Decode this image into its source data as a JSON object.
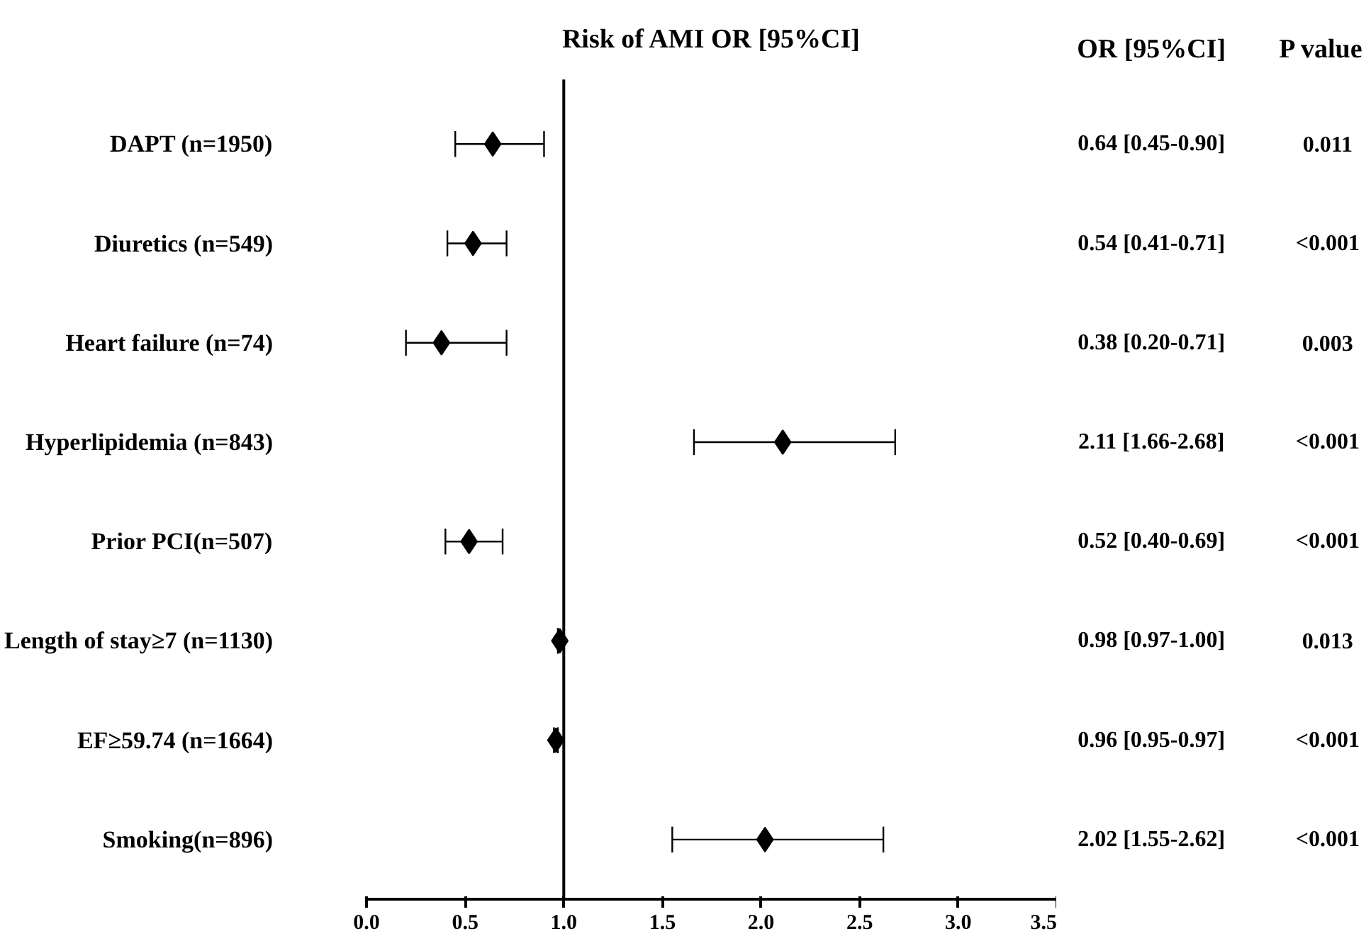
{
  "chart_data": {
    "type": "scatter",
    "orientation": "horizontal",
    "title": "Risk of AMI OR [95%CI]",
    "categories": [
      "DAPT (n=1950)",
      "Diuretics (n=549)",
      "Heart failure (n=74)",
      "Hyperlipidemia (n=843)",
      "Prior PCI(n=507)",
      "Length of stay≥7 (n=1130)",
      "EF≥59.74 (n=1664)",
      "Smoking(n=896)"
    ],
    "values": [
      0.64,
      0.54,
      0.38,
      2.11,
      0.52,
      0.98,
      0.96,
      2.02
    ],
    "errors": [
      [
        0.45,
        0.9
      ],
      [
        0.41,
        0.71
      ],
      [
        0.2,
        0.71
      ],
      [
        1.66,
        2.68
      ],
      [
        0.4,
        0.69
      ],
      [
        0.97,
        1.0
      ],
      [
        0.95,
        0.97
      ],
      [
        1.55,
        2.62
      ]
    ],
    "value_labels": [
      "0.64 [0.45-0.90]",
      "0.54 [0.41-0.71]",
      "0.38 [0.20-0.71]",
      "2.11 [1.66-2.68]",
      "0.52 [0.40-0.69]",
      "0.98 [0.97-1.00]",
      "0.96 [0.95-0.97]",
      "2.02 [1.55-2.62]"
    ],
    "color": "#000000",
    "marker": "diamond",
    "xlim": [
      0,
      3.5
    ],
    "xticks": [
      {
        "value": 0,
        "label": "0.0"
      },
      {
        "value": 0.5,
        "label": "0.5"
      },
      {
        "value": 1,
        "label": "1.0"
      },
      {
        "value": 1.5,
        "label": "1.5"
      },
      {
        "value": 2,
        "label": "2.0"
      },
      {
        "value": 2.5,
        "label": "2.5"
      },
      {
        "value": 3,
        "label": "3.0"
      },
      {
        "value": 3.5,
        "label": "3.5"
      }
    ],
    "ref_lines": [
      {
        "axis": "x",
        "value": 1,
        "color": "#000000"
      }
    ],
    "grid": false,
    "annotations": [
      "OR [95%CI]",
      "P value",
      "0.011",
      "<0.001",
      "0.003",
      "<0.001",
      "<0.001",
      "0.013",
      "<0.001",
      "<0.001"
    ]
  }
}
